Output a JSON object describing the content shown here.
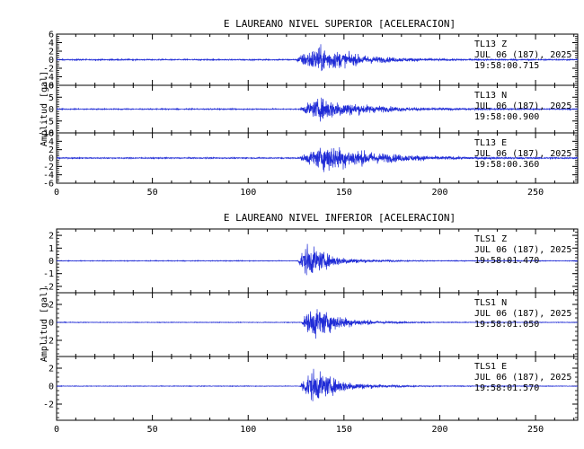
{
  "colors": {
    "trace": "#1f2bd6",
    "axis": "#000000",
    "background": "#ffffff"
  },
  "chart_data": [
    {
      "type": "line",
      "title": "E LAUREANO NIVEL SUPERIOR [ACELERACION]",
      "ylabel": "Amplitud [gal]",
      "xticks": [
        "0",
        "50",
        "100",
        "150",
        "200",
        "250"
      ],
      "xlim": [
        0,
        272
      ],
      "grid": false,
      "series": [
        {
          "name": "Z",
          "ylim": [
            -6,
            6
          ],
          "yticks": [
            "6",
            "4",
            "2",
            "0",
            "-2",
            "-4",
            "-6"
          ],
          "label": [
            "TL13   Z",
            "JUL 06 (187), 2025",
            "19:58:00.715"
          ],
          "envelope": {
            "onset_s": 125,
            "peak_s": 137,
            "peak_amp": 5.6,
            "noise_amp": 0.25,
            "decay_s": 20
          }
        },
        {
          "name": "N",
          "ylim": [
            -10,
            10
          ],
          "yticks": [
            "10",
            "5",
            "0",
            "-5",
            "-10"
          ],
          "label": [
            "TL13   N",
            "JUL 06 (187), 2025",
            "19:58:00.900"
          ],
          "envelope": {
            "onset_s": 127,
            "peak_s": 139,
            "peak_amp": 8.5,
            "noise_amp": 0.4,
            "decay_s": 22
          }
        },
        {
          "name": "E",
          "ylim": [
            -6,
            6
          ],
          "yticks": [
            "6",
            "4",
            "2",
            "0",
            "-2",
            "-4",
            "-6"
          ],
          "label": [
            "TL13   E",
            "JUL 06 (187), 2025",
            "19:58:00.360"
          ],
          "envelope": {
            "onset_s": 127,
            "peak_s": 142,
            "peak_amp": 5.8,
            "noise_amp": 0.25,
            "decay_s": 26
          }
        }
      ]
    },
    {
      "type": "line",
      "title": "E LAUREANO NIVEL INFERIOR [ACELERACION]",
      "ylabel": "Amplitud [gal]",
      "xticks": [
        "0",
        "50",
        "100",
        "150",
        "200",
        "250"
      ],
      "xlim": [
        0,
        272
      ],
      "grid": false,
      "series": [
        {
          "name": "Z",
          "ylim": [
            -2.5,
            2.5
          ],
          "yticks": [
            "2",
            "1",
            "0",
            "-1",
            "-2"
          ],
          "label": [
            "TLS1   Z",
            "JUL 06 (187), 2025",
            "19:58:01.470"
          ],
          "envelope": {
            "onset_s": 126,
            "peak_s": 131,
            "peak_amp": 2.3,
            "noise_amp": 0.05,
            "decay_s": 12
          }
        },
        {
          "name": "N",
          "ylim": [
            -3.8,
            3.3
          ],
          "yticks": [
            "2",
            "0",
            "-2"
          ],
          "label": [
            "TLS1   N",
            "JUL 06 (187), 2025",
            "19:58:01.050"
          ],
          "envelope": {
            "onset_s": 128,
            "peak_s": 135,
            "peak_amp": 3.3,
            "noise_amp": 0.06,
            "decay_s": 13
          }
        },
        {
          "name": "E",
          "ylim": [
            -3.8,
            3.3
          ],
          "yticks": [
            "2",
            "0",
            "-2"
          ],
          "label": [
            "TLS1   E",
            "JUL 06 (187), 2025",
            "19:58:01.570"
          ],
          "envelope": {
            "onset_s": 127,
            "peak_s": 134,
            "peak_amp": 3.3,
            "noise_amp": 0.06,
            "decay_s": 14
          }
        }
      ]
    }
  ]
}
